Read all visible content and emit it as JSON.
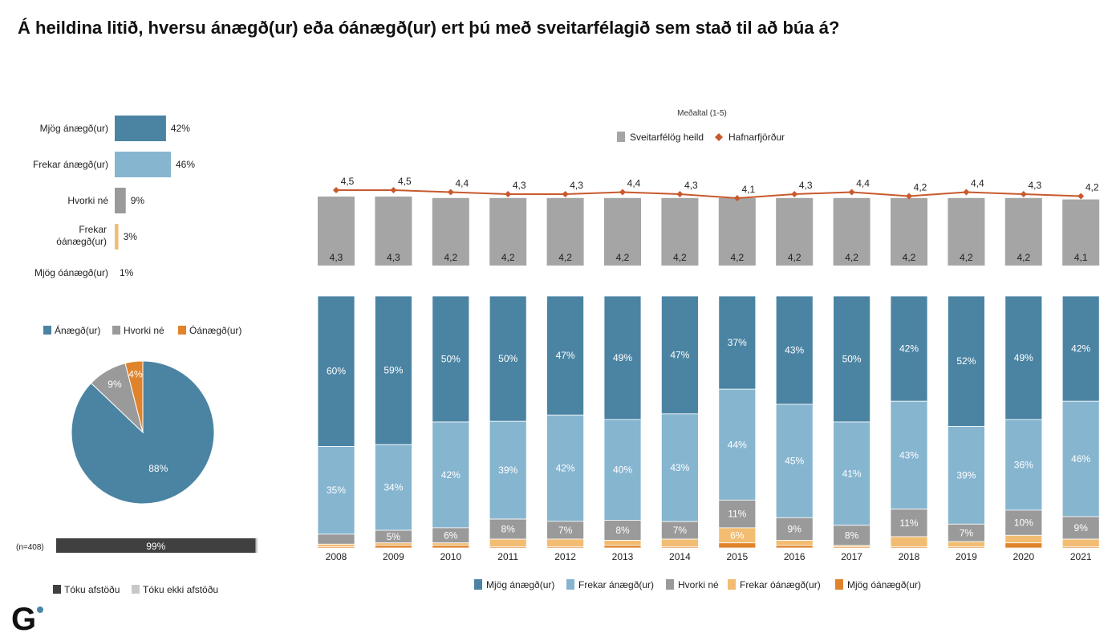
{
  "title": "Á heildina litið, hversu ánægð(ur) eða óánægð(ur) ert þú með sveitarfélagið sem stað til að búa á?",
  "colors": {
    "mjog_anaegd": "#4b84a3",
    "frekar_anaegd": "#86b5d0",
    "hvorki": "#9a9a9a",
    "frekar_oanaegd": "#f2bd72",
    "mjog_oanaegd": "#e0832a",
    "avg_bar": "#a5a5a5",
    "line": "#c8592e",
    "tokuafstodu": "#404040",
    "tokuekkiafstodu": "#c8c8c8"
  },
  "chart_data": [
    {
      "type": "bar",
      "orientation": "horizontal",
      "categories": [
        "Mjög ánægð(ur)",
        "Frekar ánægð(ur)",
        "Hvorki né",
        "Frekar óánægð(ur)",
        "Mjög óánægð(ur)"
      ],
      "values": [
        42,
        46,
        9,
        3,
        1
      ],
      "labels": [
        "42%",
        "46%",
        "9%",
        "3%",
        "1%"
      ]
    },
    {
      "type": "pie",
      "legend": [
        "Ánægð(ur)",
        "Hvorki né",
        "Óánægð(ur)"
      ],
      "values": [
        88,
        9,
        4
      ],
      "labels": [
        "88%",
        "9%",
        "4%"
      ]
    },
    {
      "type": "bar",
      "orientation": "horizontal",
      "stacked": true,
      "n_label": "(n=408)",
      "values": [
        99,
        1
      ],
      "labels": [
        "99%",
        ""
      ],
      "legend": [
        "Tóku afstöðu",
        "Tóku ekki afstöðu"
      ]
    },
    {
      "type": "bar",
      "title": "Meðaltal (1-5)",
      "categories": [
        "2008",
        "2009",
        "2010",
        "2011",
        "2012",
        "2013",
        "2014",
        "2015",
        "2016",
        "2017",
        "2018",
        "2019",
        "2020",
        "2021"
      ],
      "series": [
        {
          "name": "Sveitarfélög heild",
          "type": "bar",
          "values": [
            4.3,
            4.3,
            4.2,
            4.2,
            4.2,
            4.2,
            4.2,
            4.2,
            4.2,
            4.2,
            4.2,
            4.2,
            4.2,
            4.1
          ],
          "labels": [
            "4,3",
            "4,3",
            "4,2",
            "4,2",
            "4,2",
            "4,2",
            "4,2",
            "4,2",
            "4,2",
            "4,2",
            "4,2",
            "4,2",
            "4,2",
            "4,1"
          ]
        },
        {
          "name": "Hafnarfjörður",
          "type": "line",
          "values": [
            4.5,
            4.5,
            4.4,
            4.3,
            4.3,
            4.4,
            4.3,
            4.1,
            4.3,
            4.4,
            4.2,
            4.4,
            4.3,
            4.2
          ],
          "labels": [
            "4,5",
            "4,5",
            "4,4",
            "4,3",
            "4,3",
            "4,4",
            "4,3",
            "4,1",
            "4,3",
            "4,4",
            "4,2",
            "4,4",
            "4,3",
            "4,2"
          ]
        }
      ]
    },
    {
      "type": "bar",
      "stacked": true,
      "categories": [
        "2008",
        "2009",
        "2010",
        "2011",
        "2012",
        "2013",
        "2014",
        "2015",
        "2016",
        "2017",
        "2018",
        "2019",
        "2020",
        "2021"
      ],
      "series": [
        {
          "name": "Mjög ánægð(ur)",
          "values": [
            60,
            59,
            50,
            50,
            47,
            49,
            47,
            37,
            43,
            50,
            42,
            52,
            49,
            42
          ],
          "labels": [
            "60%",
            "59%",
            "50%",
            "50%",
            "47%",
            "49%",
            "47%",
            "37%",
            "43%",
            "50%",
            "42%",
            "52%",
            "49%",
            "42%"
          ]
        },
        {
          "name": "Frekar ánægð(ur)",
          "values": [
            35,
            34,
            42,
            39,
            42,
            40,
            43,
            44,
            45,
            41,
            43,
            39,
            36,
            46
          ],
          "labels": [
            "35%",
            "34%",
            "42%",
            "39%",
            "42%",
            "40%",
            "43%",
            "44%",
            "45%",
            "41%",
            "43%",
            "39%",
            "36%",
            "46%"
          ]
        },
        {
          "name": "Hvorki né",
          "values": [
            4,
            5,
            6,
            8,
            7,
            8,
            7,
            11,
            9,
            8,
            11,
            7,
            10,
            9
          ],
          "labels": [
            "",
            "5%",
            "6%",
            "8%",
            "7%",
            "8%",
            "7%",
            "11%",
            "9%",
            "8%",
            "11%",
            "7%",
            "10%",
            "9%"
          ]
        },
        {
          "name": "Frekar óánægð(ur)",
          "values": [
            1,
            1,
            1,
            3,
            3,
            2,
            3,
            6,
            2,
            0.5,
            4,
            2,
            3,
            3
          ],
          "labels": [
            "",
            "",
            "",
            "",
            "",
            "",
            "",
            "6%",
            "",
            "",
            "",
            "",
            "",
            ""
          ]
        },
        {
          "name": "Mjög óánægð(ur)",
          "values": [
            0.5,
            1,
            1,
            0.5,
            0.5,
            1,
            0.5,
            2,
            1,
            0.5,
            0.5,
            0.5,
            2,
            0.5
          ],
          "labels": [
            "",
            "",
            "",
            "",
            "",
            "",
            "",
            "",
            "",
            "",
            "",
            "",
            "",
            ""
          ]
        }
      ]
    }
  ]
}
